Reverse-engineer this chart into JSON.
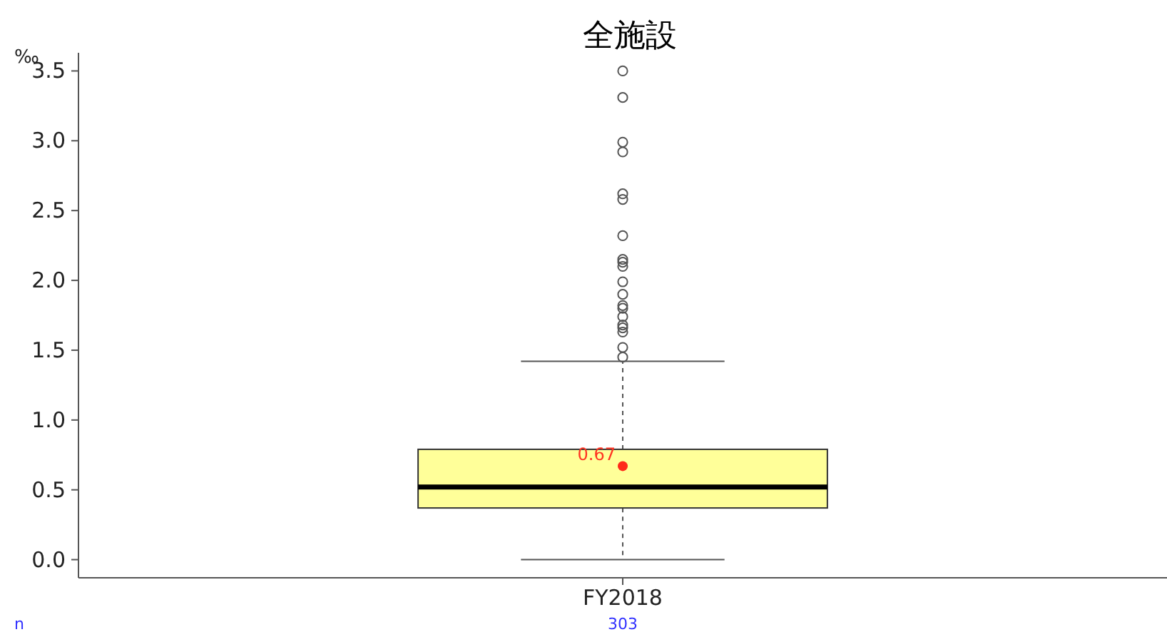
{
  "chart_data": {
    "type": "box",
    "title": "全施設",
    "ylabel": "‰",
    "categories": [
      "FY2018"
    ],
    "boxes": [
      {
        "low": 0.0,
        "q1": 0.37,
        "median": 0.52,
        "q3": 0.79,
        "high": 1.42,
        "mean": 0.67,
        "outliers": [
          3.5,
          3.31,
          2.99,
          2.92,
          2.62,
          2.58,
          2.32,
          2.15,
          2.13,
          2.1,
          1.99,
          1.9,
          1.82,
          1.8,
          1.74,
          1.68,
          1.66,
          1.63,
          1.52,
          1.45
        ]
      }
    ],
    "colors": [
      "#ffff99"
    ],
    "ylim": [
      -0.13,
      3.63
    ],
    "yticks": [
      {
        "value": 0,
        "label": "0.0"
      },
      {
        "value": 0.5,
        "label": "0.5"
      },
      {
        "value": 1,
        "label": "1.0"
      },
      {
        "value": 1.5,
        "label": "1.5"
      },
      {
        "value": 2,
        "label": "2.0"
      },
      {
        "value": 2.5,
        "label": "2.5"
      },
      {
        "value": 3,
        "label": "3.0"
      },
      {
        "value": 3.5,
        "label": "3.5"
      }
    ],
    "grid": false,
    "value_labels": [
      "0.67"
    ],
    "annotations": [
      "n",
      "303"
    ]
  }
}
